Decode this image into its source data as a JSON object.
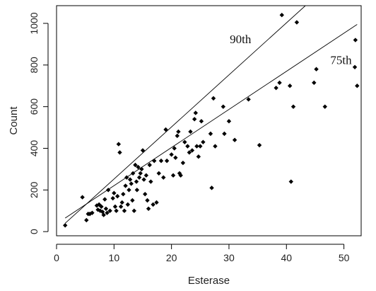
{
  "chart_data": {
    "type": "scatter",
    "xlabel": "Esterase",
    "ylabel": "Count",
    "xlim": [
      0,
      53
    ],
    "ylim": [
      -20,
      1085
    ],
    "xticks": [
      0,
      10,
      20,
      30,
      40,
      50
    ],
    "yticks": [
      0,
      200,
      400,
      600,
      800,
      1000
    ],
    "grid": false,
    "colors": {
      "points": "#000000",
      "lines": "#000000",
      "frame": "#000000"
    },
    "points": [
      {
        "x": 1.5,
        "y": 30
      },
      {
        "x": 4.5,
        "y": 165
      },
      {
        "x": 5.2,
        "y": 55
      },
      {
        "x": 5.5,
        "y": 85
      },
      {
        "x": 5.8,
        "y": 85
      },
      {
        "x": 6.2,
        "y": 90
      },
      {
        "x": 7.0,
        "y": 125
      },
      {
        "x": 7.2,
        "y": 105
      },
      {
        "x": 7.4,
        "y": 130
      },
      {
        "x": 7.6,
        "y": 100
      },
      {
        "x": 7.8,
        "y": 120
      },
      {
        "x": 8.0,
        "y": 95
      },
      {
        "x": 8.2,
        "y": 80
      },
      {
        "x": 8.4,
        "y": 155
      },
      {
        "x": 8.6,
        "y": 110
      },
      {
        "x": 8.8,
        "y": 90
      },
      {
        "x": 9.0,
        "y": 200
      },
      {
        "x": 9.3,
        "y": 100
      },
      {
        "x": 9.8,
        "y": 160
      },
      {
        "x": 10.0,
        "y": 185
      },
      {
        "x": 10.2,
        "y": 120
      },
      {
        "x": 10.4,
        "y": 100
      },
      {
        "x": 10.6,
        "y": 170
      },
      {
        "x": 10.8,
        "y": 420
      },
      {
        "x": 11.0,
        "y": 380
      },
      {
        "x": 11.2,
        "y": 120
      },
      {
        "x": 11.4,
        "y": 140
      },
      {
        "x": 11.6,
        "y": 180
      },
      {
        "x": 11.8,
        "y": 100
      },
      {
        "x": 12.0,
        "y": 220
      },
      {
        "x": 12.2,
        "y": 260
      },
      {
        "x": 12.4,
        "y": 130
      },
      {
        "x": 12.6,
        "y": 200
      },
      {
        "x": 12.8,
        "y": 250
      },
      {
        "x": 13.0,
        "y": 230
      },
      {
        "x": 13.2,
        "y": 150
      },
      {
        "x": 13.3,
        "y": 280
      },
      {
        "x": 13.5,
        "y": 100
      },
      {
        "x": 13.7,
        "y": 320
      },
      {
        "x": 13.9,
        "y": 240
      },
      {
        "x": 14.0,
        "y": 200
      },
      {
        "x": 14.2,
        "y": 310
      },
      {
        "x": 14.4,
        "y": 260
      },
      {
        "x": 14.6,
        "y": 280
      },
      {
        "x": 14.8,
        "y": 300
      },
      {
        "x": 15.0,
        "y": 390
      },
      {
        "x": 15.2,
        "y": 250
      },
      {
        "x": 15.4,
        "y": 180
      },
      {
        "x": 15.6,
        "y": 270
      },
      {
        "x": 15.8,
        "y": 150
      },
      {
        "x": 16.0,
        "y": 110
      },
      {
        "x": 16.2,
        "y": 320
      },
      {
        "x": 16.4,
        "y": 240
      },
      {
        "x": 16.8,
        "y": 130
      },
      {
        "x": 17.0,
        "y": 340
      },
      {
        "x": 17.4,
        "y": 140
      },
      {
        "x": 17.8,
        "y": 280
      },
      {
        "x": 18.2,
        "y": 340
      },
      {
        "x": 18.6,
        "y": 260
      },
      {
        "x": 19.0,
        "y": 490
      },
      {
        "x": 19.2,
        "y": 340
      },
      {
        "x": 20.0,
        "y": 370
      },
      {
        "x": 20.3,
        "y": 270
      },
      {
        "x": 20.5,
        "y": 400
      },
      {
        "x": 20.7,
        "y": 355
      },
      {
        "x": 21.0,
        "y": 460
      },
      {
        "x": 21.2,
        "y": 480
      },
      {
        "x": 21.4,
        "y": 280
      },
      {
        "x": 21.6,
        "y": 270
      },
      {
        "x": 22.0,
        "y": 330
      },
      {
        "x": 22.3,
        "y": 430
      },
      {
        "x": 22.8,
        "y": 410
      },
      {
        "x": 23.1,
        "y": 380
      },
      {
        "x": 23.3,
        "y": 480
      },
      {
        "x": 23.6,
        "y": 390
      },
      {
        "x": 24.0,
        "y": 540
      },
      {
        "x": 24.2,
        "y": 570
      },
      {
        "x": 24.4,
        "y": 410
      },
      {
        "x": 24.7,
        "y": 360
      },
      {
        "x": 25.0,
        "y": 410
      },
      {
        "x": 25.2,
        "y": 530
      },
      {
        "x": 25.5,
        "y": 430
      },
      {
        "x": 26.8,
        "y": 470
      },
      {
        "x": 27.0,
        "y": 210
      },
      {
        "x": 27.3,
        "y": 640
      },
      {
        "x": 27.6,
        "y": 410
      },
      {
        "x": 29.0,
        "y": 600
      },
      {
        "x": 29.2,
        "y": 470
      },
      {
        "x": 30.0,
        "y": 530
      },
      {
        "x": 31.0,
        "y": 440
      },
      {
        "x": 33.4,
        "y": 635
      },
      {
        "x": 35.3,
        "y": 415
      },
      {
        "x": 38.2,
        "y": 690
      },
      {
        "x": 38.8,
        "y": 715
      },
      {
        "x": 39.2,
        "y": 1040
      },
      {
        "x": 40.6,
        "y": 700
      },
      {
        "x": 40.8,
        "y": 240
      },
      {
        "x": 41.2,
        "y": 600
      },
      {
        "x": 41.8,
        "y": 1005
      },
      {
        "x": 44.8,
        "y": 715
      },
      {
        "x": 45.2,
        "y": 780
      },
      {
        "x": 46.7,
        "y": 600
      },
      {
        "x": 51.9,
        "y": 790
      },
      {
        "x": 52.0,
        "y": 920
      },
      {
        "x": 52.3,
        "y": 700
      }
    ],
    "lines": [
      {
        "label": "90th",
        "x1": 1.5,
        "y1": 40,
        "x2": 43.3,
        "y2": 1085
      },
      {
        "label": "75th",
        "x1": 1.5,
        "y1": 65,
        "x2": 52.3,
        "y2": 995
      }
    ],
    "annotations": [
      {
        "text": "90th",
        "x": 32.0,
        "y": 905
      },
      {
        "text": "75th",
        "x": 49.5,
        "y": 805
      }
    ]
  }
}
